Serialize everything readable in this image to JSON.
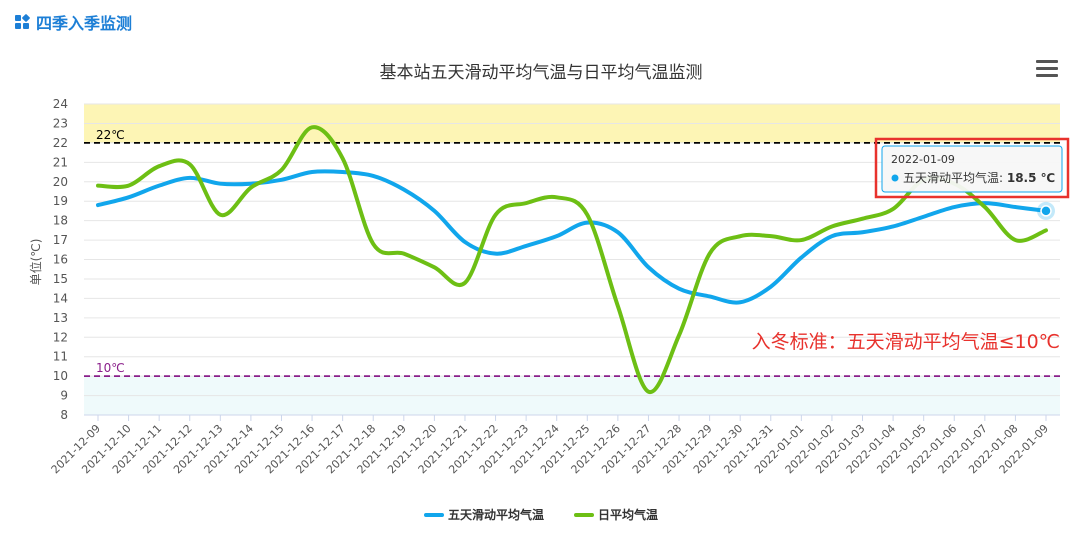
{
  "header": {
    "title": "四季入季监测",
    "icon": "grid-icon"
  },
  "menu": {
    "icon": "hamburger-menu-icon"
  },
  "colors": {
    "moving_avg": "#11a6ec",
    "daily_avg": "#6dbf14",
    "warm_band": "#fdf5b5",
    "cold_band": "#effafb",
    "line22": "#000000",
    "line10": "#8a1e8a",
    "annotation": "#e8322d",
    "tooltip_border": "#e8322d"
  },
  "chart_data": {
    "type": "line",
    "title": "基本站五天滑动平均气温与日平均气温监测",
    "ylabel": "单位(℃)",
    "ylim": [
      8,
      24
    ],
    "yticks": [
      "8",
      "9",
      "10",
      "11",
      "12",
      "13",
      "14",
      "15",
      "16",
      "17",
      "18",
      "19",
      "20",
      "21",
      "22",
      "23",
      "24"
    ],
    "categories": [
      "2021-12-09",
      "2021-12-10",
      "2021-12-11",
      "2021-12-12",
      "2021-12-13",
      "2021-12-14",
      "2021-12-15",
      "2021-12-16",
      "2021-12-17",
      "2021-12-18",
      "2021-12-19",
      "2021-12-20",
      "2021-12-21",
      "2021-12-22",
      "2021-12-23",
      "2021-12-24",
      "2021-12-25",
      "2021-12-26",
      "2021-12-27",
      "2021-12-28",
      "2021-12-29",
      "2021-12-30",
      "2021-12-31",
      "2022-01-01",
      "2022-01-02",
      "2022-01-03",
      "2022-01-04",
      "2022-01-05",
      "2022-01-06",
      "2022-01-07",
      "2022-01-08",
      "2022-01-09"
    ],
    "series": [
      {
        "name": "五天滑动平均气温",
        "values": [
          18.8,
          19.2,
          19.8,
          20.2,
          19.9,
          19.9,
          20.1,
          20.5,
          20.5,
          20.3,
          19.6,
          18.5,
          16.9,
          16.3,
          16.7,
          17.2,
          17.9,
          17.4,
          15.6,
          14.5,
          14.1,
          13.8,
          14.6,
          16.1,
          17.2,
          17.4,
          17.7,
          18.2,
          18.7,
          18.9,
          18.7,
          18.5
        ]
      },
      {
        "name": "日平均气温",
        "values": [
          19.8,
          19.8,
          20.8,
          20.9,
          18.3,
          19.7,
          20.6,
          22.8,
          21.2,
          16.8,
          16.3,
          15.6,
          14.8,
          18.3,
          18.9,
          19.2,
          18.3,
          13.6,
          9.2,
          12.1,
          16.3,
          17.2,
          17.2,
          17.0,
          17.7,
          18.1,
          18.6,
          20.1,
          19.9,
          18.7,
          17.0,
          17.5
        ]
      }
    ],
    "bands": [
      {
        "from": 22,
        "to": 24
      },
      {
        "from": 8,
        "to": 10
      }
    ],
    "reference_lines": [
      {
        "value": 22,
        "label": "22℃"
      },
      {
        "value": 10,
        "label": "10℃"
      }
    ],
    "annotation": "入冬标准：五天滑动平均气温≤10℃",
    "tooltip": {
      "date": "2022-01-09",
      "series_name": "五天滑动平均气温",
      "value": "18.5 ℃",
      "index": 31
    },
    "legend_position": "bottom-center",
    "grid": true
  }
}
